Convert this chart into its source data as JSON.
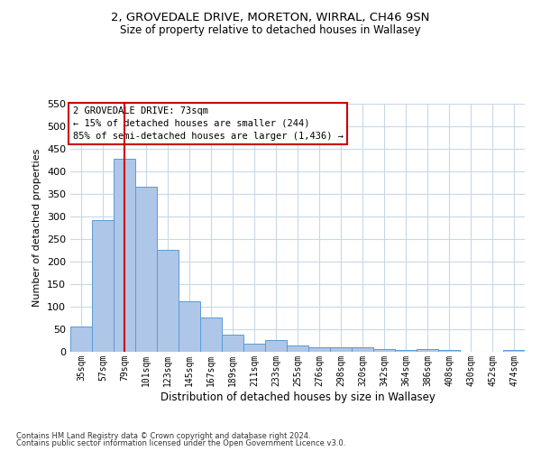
{
  "title_line1": "2, GROVEDALE DRIVE, MORETON, WIRRAL, CH46 9SN",
  "title_line2": "Size of property relative to detached houses in Wallasey",
  "xlabel": "Distribution of detached houses by size in Wallasey",
  "ylabel": "Number of detached properties",
  "footer_line1": "Contains HM Land Registry data © Crown copyright and database right 2024.",
  "footer_line2": "Contains public sector information licensed under the Open Government Licence v3.0.",
  "categories": [
    "35sqm",
    "57sqm",
    "79sqm",
    "101sqm",
    "123sqm",
    "145sqm",
    "167sqm",
    "189sqm",
    "211sqm",
    "233sqm",
    "255sqm",
    "276sqm",
    "298sqm",
    "320sqm",
    "342sqm",
    "364sqm",
    "386sqm",
    "408sqm",
    "430sqm",
    "452sqm",
    "474sqm"
  ],
  "values": [
    57,
    293,
    428,
    367,
    226,
    113,
    76,
    38,
    18,
    27,
    15,
    11,
    10,
    10,
    6,
    4,
    6,
    5,
    1,
    0,
    4
  ],
  "bar_color": "#aec6e8",
  "bar_edge_color": "#5b9bd5",
  "highlight_idx": 2,
  "highlight_color": "#cc0000",
  "annotation_text": "2 GROVEDALE DRIVE: 73sqm\n← 15% of detached houses are smaller (244)\n85% of semi-detached houses are larger (1,436) →",
  "annotation_box_color": "#ffffff",
  "annotation_box_edge_color": "#cc0000",
  "ylim": [
    0,
    550
  ],
  "yticks": [
    0,
    50,
    100,
    150,
    200,
    250,
    300,
    350,
    400,
    450,
    500,
    550
  ],
  "bg_color": "#ffffff",
  "grid_color": "#c8d8e8"
}
